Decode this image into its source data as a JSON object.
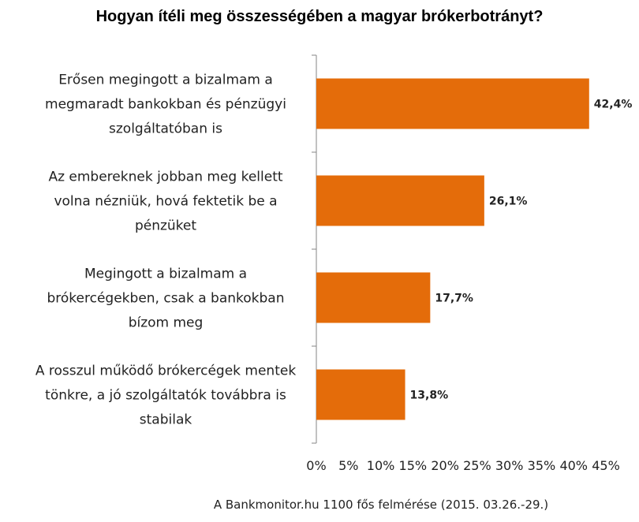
{
  "chart_data": {
    "type": "bar",
    "orientation": "horizontal",
    "title": "Hogyan ítéli meg összességében a magyar brókerbotrányt?",
    "categories": [
      [
        "Erősen megingott a bizalmam a",
        "megmaradt bankokban és pénzügyi",
        "szolgáltatóban is"
      ],
      [
        "Az embereknek jobban meg kellett",
        "volna nézniük, hová fektetik be a",
        "pénzüket"
      ],
      [
        "Megingott a bizalmam a",
        "brókercégekben, csak a bankokban",
        "bízom meg"
      ],
      [
        "A rosszul működő brókercégek mentek",
        "tönkre, a jó szolgáltatók továbbra is",
        "stabilak"
      ]
    ],
    "values": [
      42.4,
      26.1,
      17.7,
      13.8
    ],
    "value_labels": [
      "42,4%",
      "26,1%",
      "17,7%",
      "13,8%"
    ],
    "xlim": [
      0,
      45
    ],
    "x_ticks": [
      0,
      5,
      10,
      15,
      20,
      25,
      30,
      35,
      40,
      45
    ],
    "x_tick_labels": [
      "0%",
      "5%",
      "10%",
      "15%",
      "20%",
      "25%",
      "30%",
      "35%",
      "40%",
      "45%"
    ],
    "bar_color": "#E46C0A",
    "grid": false,
    "legend": "none",
    "source_note": "A Bankmonitor.hu 1100 fős felmérése (2015. 03.26.-29.)"
  }
}
